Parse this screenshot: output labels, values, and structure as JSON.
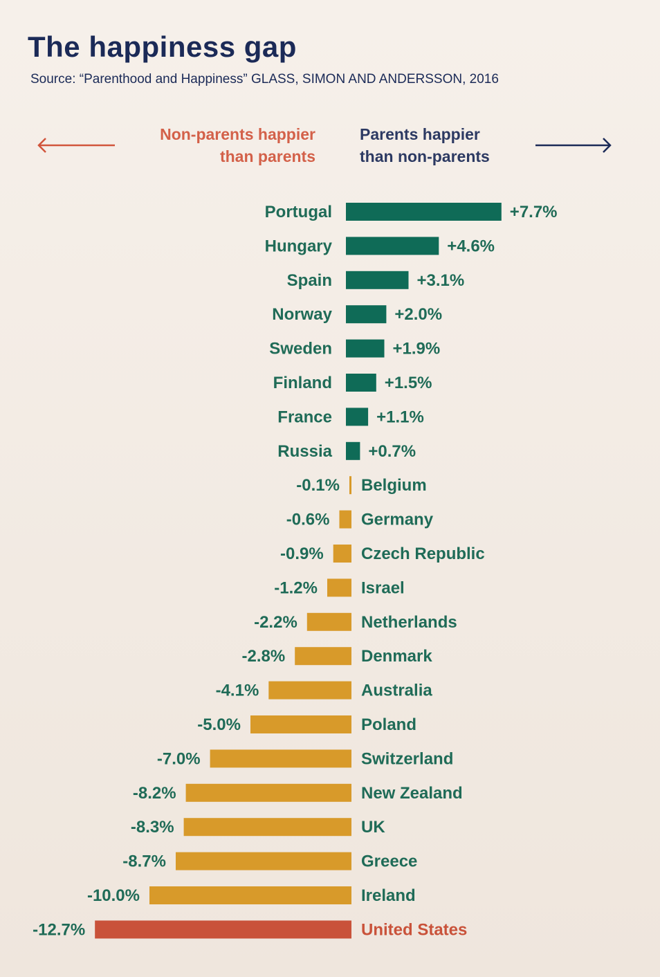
{
  "header": {
    "title": "The happiness gap",
    "source": "Source: “Parenthood and Happiness” GLASS, SIMON AND ANDERSSON, 2016"
  },
  "legend": {
    "left_line1": "Non-parents happier",
    "left_line2": "than parents",
    "right_line1": "Parents happier",
    "right_line2": "than non-parents"
  },
  "colors": {
    "positive": "#0f6b57",
    "negative": "#d89a2a",
    "highlight": "#c9523a",
    "title": "#1b2a57",
    "label_text": "#1f6b57",
    "highlight_text": "#c9523a"
  },
  "chart_data": {
    "type": "bar",
    "orientation": "horizontal-diverging",
    "categories": [
      "Portugal",
      "Hungary",
      "Spain",
      "Norway",
      "Sweden",
      "Finland",
      "France",
      "Russia",
      "Belgium",
      "Germany",
      "Czech Republic",
      "Israel",
      "Netherlands",
      "Denmark",
      "Australia",
      "Poland",
      "Switzerland",
      "New Zealand",
      "UK",
      "Greece",
      "Ireland",
      "United States"
    ],
    "values": [
      7.7,
      4.6,
      3.1,
      2.0,
      1.9,
      1.5,
      1.1,
      0.7,
      -0.1,
      -0.6,
      -0.9,
      -1.2,
      -2.2,
      -2.8,
      -4.1,
      -5.0,
      -7.0,
      -8.2,
      -8.3,
      -8.7,
      -10.0,
      -12.7
    ],
    "value_labels": [
      "+7.7%",
      "+4.6%",
      "+3.1%",
      "+2.0%",
      "+1.9%",
      "+1.5%",
      "+1.1%",
      "+0.7%",
      "-0.1%",
      "-0.6%",
      "-0.9%",
      "-1.2%",
      "-2.2%",
      "-2.8%",
      "-4.1%",
      "-5.0%",
      "-7.0%",
      "-8.2%",
      "-8.3%",
      "-8.7%",
      "-10.0%",
      "-12.7%"
    ],
    "highlight": "United States",
    "unit": "%"
  }
}
